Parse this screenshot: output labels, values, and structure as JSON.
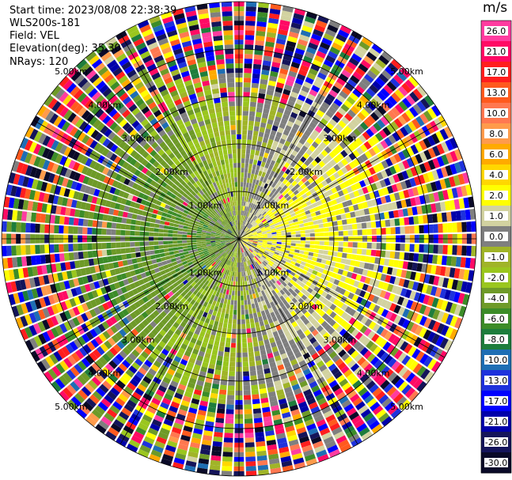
{
  "info": {
    "start_time": "Start time: 2023/08/08 22:38:39",
    "instrument": "WLS200s-181",
    "field": "Field: VEL",
    "elevation": "Elevation(deg): 35.30",
    "nrays": "NRays: 120"
  },
  "colorbar": {
    "unit": "m/s",
    "ticks": [
      "26.0",
      "21.0",
      "17.0",
      "13.0",
      "10.0",
      "8.0",
      "6.0",
      "4.0",
      "2.0",
      "1.0",
      "0.0",
      "-1.0",
      "-2.0",
      "-4.0",
      "-6.0",
      "-8.0",
      "-10.0",
      "-13.0",
      "-17.0",
      "-21.0",
      "-26.0",
      "-30.0"
    ],
    "colors": [
      "#ff3ca0",
      "#ff0a64",
      "#ff1e1e",
      "#ff5a1e",
      "#ff7850",
      "#ff9b4b",
      "#ffaa00",
      "#ffd700",
      "#ffff00",
      "#d2d2a0",
      "#7f7f7f",
      "#a0b428",
      "#9ac61e",
      "#6e9a28",
      "#3c8c28",
      "#1e7d3c",
      "#1e6eb4",
      "#1e32dc",
      "#0000ff",
      "#0000aa",
      "#14145a",
      "#0a0a28"
    ]
  },
  "chart_data": {
    "type": "heatmap",
    "projection": "polar PPI",
    "field": "VEL",
    "nrays": 120,
    "range_rings_km": [
      1.0,
      2.0,
      3.0,
      4.0,
      5.0
    ],
    "ring_labels": [
      "1.00km",
      "2.00km",
      "3.00km",
      "4.00km",
      "5.00km"
    ],
    "azimuth_spokes_deg": [
      0,
      30,
      60,
      90,
      120,
      150,
      180,
      210,
      240,
      270,
      300,
      330
    ]
  }
}
